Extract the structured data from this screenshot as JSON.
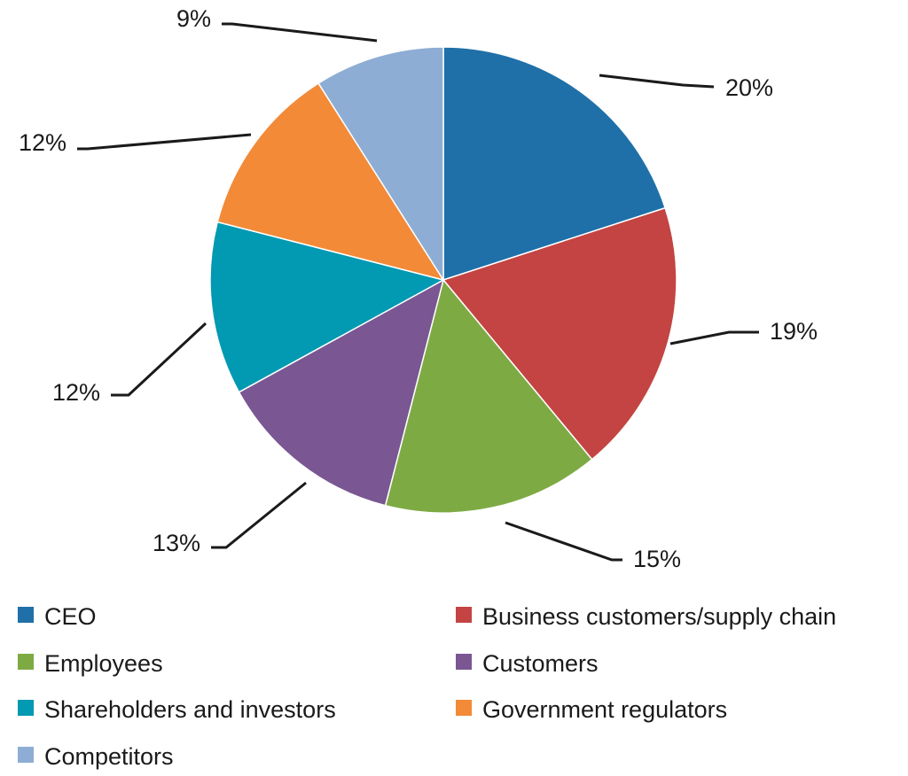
{
  "chart_data": {
    "type": "pie",
    "start_angle_deg": 0,
    "direction": "clockwise",
    "slices": [
      {
        "name": "CEO",
        "value": 20,
        "label": "20%",
        "color": "#1f70a8"
      },
      {
        "name": "Business customers/supply chain",
        "value": 19,
        "label": "19%",
        "color": "#c34442"
      },
      {
        "name": "Employees",
        "value": 15,
        "label": "15%",
        "color": "#7eaa44"
      },
      {
        "name": "Customers",
        "value": 13,
        "label": "13%",
        "color": "#7a5693"
      },
      {
        "name": "Shareholders and investors",
        "value": 12,
        "label": "12%",
        "color": "#0299b2"
      },
      {
        "name": "Government regulators",
        "value": 12,
        "label": "12%",
        "color": "#f28a38"
      },
      {
        "name": "Competitors",
        "value": 9,
        "label": "9%",
        "color": "#8eadd4"
      }
    ],
    "legend_position": "bottom"
  }
}
